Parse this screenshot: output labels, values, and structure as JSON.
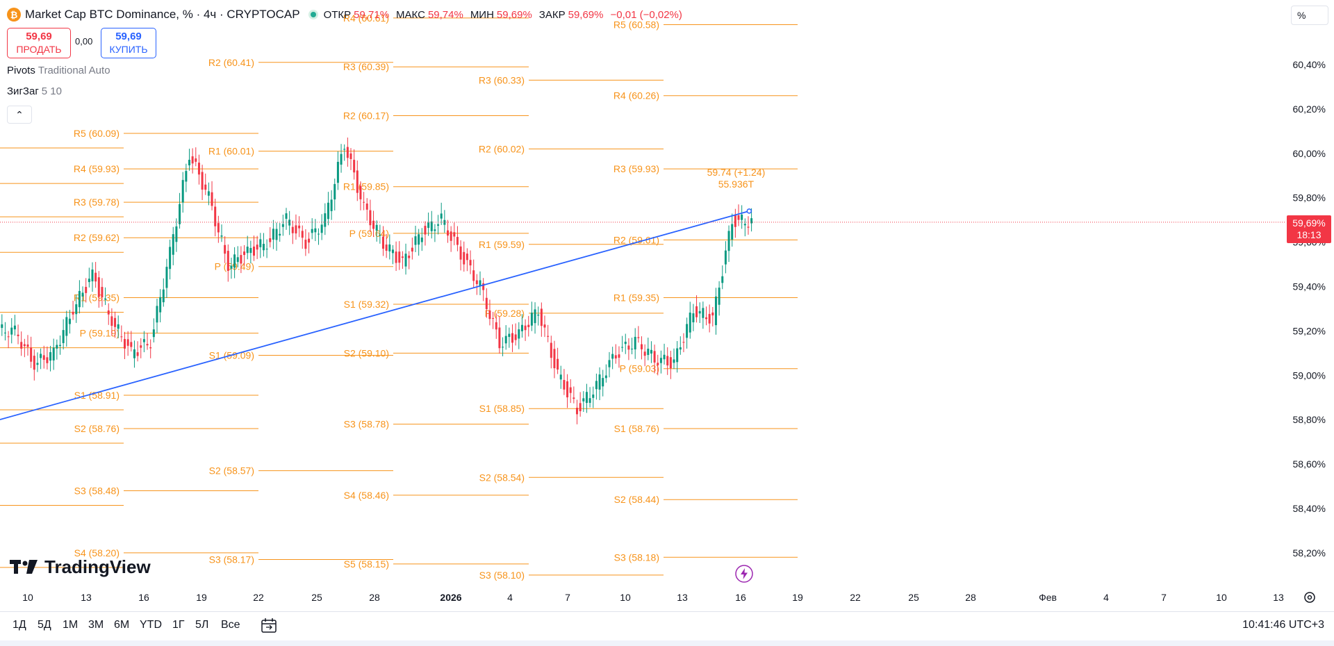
{
  "header": {
    "coin_icon": "bitcoin-icon",
    "coin_glyph": "₿",
    "symbol_title": "Market Cap BTC Dominance, % · 4ч · CRYPTOCAP",
    "ohlc": {
      "open_label": "ОТКР",
      "open_value": "59,71%",
      "high_label": "МАКС",
      "high_value": "59,74%",
      "low_label": "МИН",
      "low_value": "59,69%",
      "close_label": "ЗАКР",
      "close_value": "59,69%",
      "change_value": "−0,01 (−0,02%)"
    }
  },
  "trade": {
    "sell_price": "59,69",
    "sell_label": "ПРОДАТЬ",
    "spread": "0,00",
    "buy_price": "59,69",
    "buy_label": "КУПИТЬ"
  },
  "indicators": [
    {
      "name": "Pivots",
      "params": "Traditional Auto"
    },
    {
      "name": "ЗигЗаг",
      "params": "5 10"
    }
  ],
  "collapse_glyph": "⌃",
  "price_scale": {
    "unit": "%",
    "ticks": [
      "60,40%",
      "60,20%",
      "60,00%",
      "59,80%",
      "59,60%",
      "59,40%",
      "59,20%",
      "59,00%",
      "58,80%",
      "58,60%",
      "58,40%",
      "58,20%"
    ],
    "current_price": "59,69%",
    "countdown": "18:13"
  },
  "time_axis": [
    "10",
    "13",
    "16",
    "19",
    "22",
    "25",
    "28",
    "2026",
    "4",
    "7",
    "10",
    "13",
    "16",
    "19",
    "22",
    "25",
    "28",
    "Фев",
    "4",
    "7",
    "10",
    "13"
  ],
  "chart_data": {
    "type": "candlestick",
    "ylim": [
      58.1,
      60.58
    ],
    "current_price": 59.69,
    "annotation": {
      "price": "59.74 (+1.24)",
      "volume": "55.936T"
    },
    "trendline": [
      {
        "date": "2025-12-08",
        "price": 58.8
      },
      {
        "date": "2026-01-16",
        "price": 59.74
      }
    ],
    "pivot_periods": [
      {
        "levels": [
          {
            "label": "R5 (60.09)",
            "value": 60.09
          },
          {
            "label": "R4 (59.93)",
            "value": 59.93
          },
          {
            "label": "R3 (59.78)",
            "value": 59.78
          },
          {
            "label": "R2 (59.62)",
            "value": 59.62
          },
          {
            "label": "R1 (59.35)",
            "value": 59.35
          },
          {
            "label": "P (59.19)",
            "value": 59.19
          },
          {
            "label": "S1 (58.91)",
            "value": 58.91
          },
          {
            "label": "S2 (58.76)",
            "value": 58.76
          },
          {
            "label": "S3 (58.48)",
            "value": 58.48
          },
          {
            "label": "S4 (58.20)",
            "value": 58.2
          }
        ]
      },
      {
        "levels": [
          {
            "label": "R2 (60.41)",
            "value": 60.41
          },
          {
            "label": "R1 (60.01)",
            "value": 60.01
          },
          {
            "label": "P (59.49)",
            "value": 59.49
          },
          {
            "label": "S1 (59.09)",
            "value": 59.09
          },
          {
            "label": "S2 (58.57)",
            "value": 58.57
          },
          {
            "label": "S3 (58.17)",
            "value": 58.17
          }
        ]
      },
      {
        "levels": [
          {
            "label": "R4 (60.61)",
            "value": 60.61
          },
          {
            "label": "R3 (60.39)",
            "value": 60.39
          },
          {
            "label": "R2 (60.17)",
            "value": 60.17
          },
          {
            "label": "R1 (59.85)",
            "value": 59.85
          },
          {
            "label": "P (59.64)",
            "value": 59.64
          },
          {
            "label": "S1 (59.32)",
            "value": 59.32
          },
          {
            "label": "S2 (59.10)",
            "value": 59.1
          },
          {
            "label": "S3 (58.78)",
            "value": 58.78
          },
          {
            "label": "S4 (58.46)",
            "value": 58.46
          },
          {
            "label": "S5 (58.15)",
            "value": 58.15
          }
        ]
      },
      {
        "levels": [
          {
            "label": "R3 (60.33)",
            "value": 60.33
          },
          {
            "label": "R2 (60.02)",
            "value": 60.02
          },
          {
            "label": "R1 (59.59)",
            "value": 59.59
          },
          {
            "label": "P (59.28)",
            "value": 59.28
          },
          {
            "label": "S1 (58.85)",
            "value": 58.85
          },
          {
            "label": "S2 (58.54)",
            "value": 58.54
          },
          {
            "label": "S3 (58.10)",
            "value": 58.1
          }
        ]
      },
      {
        "levels": [
          {
            "label": "R5 (60.58)",
            "value": 60.58
          },
          {
            "label": "R4 (60.26)",
            "value": 60.26
          },
          {
            "label": "R3 (59.93)",
            "value": 59.93
          },
          {
            "label": "R2 (59.61)",
            "value": 59.61
          },
          {
            "label": "R1 (59.35)",
            "value": 59.35
          },
          {
            "label": "P (59.03)",
            "value": 59.03
          },
          {
            "label": "S1 (58.76)",
            "value": 58.76
          },
          {
            "label": "S2 (58.44)",
            "value": 58.44
          },
          {
            "label": "S3 (58.18)",
            "value": 58.18
          }
        ]
      }
    ],
    "ohlc_path": [
      {
        "date": "2025-12-09",
        "close": 59.2
      },
      {
        "date": "2025-12-10",
        "close": 59.05
      },
      {
        "date": "2025-12-11",
        "close": 59.1
      },
      {
        "date": "2025-12-12",
        "close": 59.3
      },
      {
        "date": "2025-12-13",
        "close": 59.45
      },
      {
        "date": "2025-12-14",
        "close": 59.25
      },
      {
        "date": "2025-12-15",
        "close": 59.1
      },
      {
        "date": "2025-12-16",
        "close": 59.15
      },
      {
        "date": "2025-12-17",
        "close": 59.55
      },
      {
        "date": "2025-12-18",
        "close": 60.0
      },
      {
        "date": "2025-12-19",
        "close": 59.8
      },
      {
        "date": "2025-12-20",
        "close": 59.5
      },
      {
        "date": "2025-12-21",
        "close": 59.55
      },
      {
        "date": "2025-12-22",
        "close": 59.6
      },
      {
        "date": "2025-12-23",
        "close": 59.7
      },
      {
        "date": "2025-12-24",
        "close": 59.6
      },
      {
        "date": "2025-12-25",
        "close": 59.7
      },
      {
        "date": "2025-12-26",
        "close": 60.05
      },
      {
        "date": "2025-12-27",
        "close": 59.75
      },
      {
        "date": "2025-12-28",
        "close": 59.6
      },
      {
        "date": "2025-12-29",
        "close": 59.5
      },
      {
        "date": "2025-12-30",
        "close": 59.65
      },
      {
        "date": "2025-12-31",
        "close": 59.7
      },
      {
        "date": "2026-01-01",
        "close": 59.55
      },
      {
        "date": "2026-01-02",
        "close": 59.4
      },
      {
        "date": "2026-01-03",
        "close": 59.15
      },
      {
        "date": "2026-01-04",
        "close": 59.18
      },
      {
        "date": "2026-01-05",
        "close": 59.3
      },
      {
        "date": "2026-01-06",
        "close": 59.0
      },
      {
        "date": "2026-01-07",
        "close": 58.85
      },
      {
        "date": "2026-01-08",
        "close": 58.95
      },
      {
        "date": "2026-01-09",
        "close": 59.1
      },
      {
        "date": "2026-01-10",
        "close": 59.15
      },
      {
        "date": "2026-01-11",
        "close": 59.08
      },
      {
        "date": "2026-01-12",
        "close": 59.05
      },
      {
        "date": "2026-01-13",
        "close": 59.3
      },
      {
        "date": "2026-01-14",
        "close": 59.25
      },
      {
        "date": "2026-01-15",
        "close": 59.7
      },
      {
        "date": "2026-01-16",
        "close": 59.69
      }
    ]
  },
  "logo": {
    "text": "TradingView"
  },
  "bottom_bar": {
    "ranges": [
      "1Д",
      "5Д",
      "1М",
      "3М",
      "6М",
      "YTD",
      "1Г",
      "5Л",
      "Все"
    ],
    "clock": "10:41:46 UTC+3"
  },
  "colors": {
    "pivot": "#f7931a",
    "up": "#089981",
    "down": "#f23645",
    "trendline": "#2962ff",
    "grid_text": "#131722",
    "badge": "#f23645"
  }
}
